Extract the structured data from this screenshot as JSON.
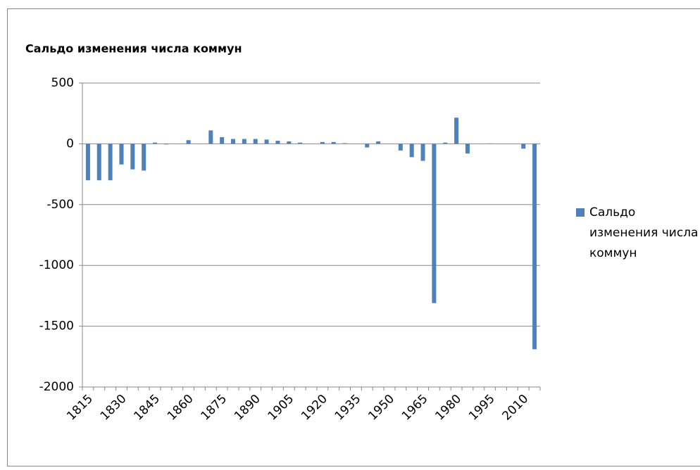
{
  "chart_data": {
    "type": "bar",
    "title": "Сальдо изменения числа коммун",
    "categories": [
      "1815",
      null,
      null,
      "1830",
      null,
      null,
      "1845",
      null,
      null,
      "1860",
      null,
      null,
      "1875",
      null,
      null,
      "1890",
      null,
      null,
      "1905",
      null,
      null,
      "1920",
      null,
      null,
      "1935",
      null,
      null,
      "1950",
      null,
      null,
      "1965",
      null,
      null,
      "1980",
      null,
      null,
      "1995",
      null,
      null,
      "2010",
      null
    ],
    "series": [
      {
        "name": "Сальдо изменения числа коммун",
        "color": "#4f81bd",
        "values": [
          -300,
          -300,
          -300,
          -170,
          -210,
          -220,
          10,
          -5,
          0,
          30,
          0,
          110,
          55,
          40,
          40,
          40,
          35,
          25,
          20,
          10,
          0,
          15,
          15,
          5,
          0,
          -30,
          20,
          0,
          -55,
          -110,
          -140,
          -1310,
          10,
          215,
          -80,
          0,
          3,
          0,
          0,
          -40,
          -1690
        ]
      }
    ],
    "ylim": [
      -2000,
      500
    ],
    "yticks": [
      -2000,
      -1500,
      -1000,
      -500,
      0,
      500
    ],
    "grid": true,
    "legend": "right"
  }
}
